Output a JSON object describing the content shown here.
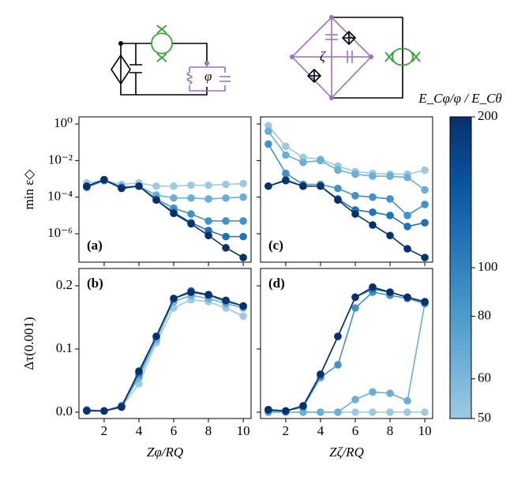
{
  "circuits": {
    "left_label": "φ",
    "right_label": "ζ"
  },
  "colorbar": {
    "label": "E_Cφ/φ / E_Cθ",
    "lim": [
      50,
      200
    ],
    "log": true,
    "ticks": [
      50,
      60,
      80,
      100,
      200
    ],
    "colors": [
      "#9ecae1",
      "#6baed6",
      "#4292c6",
      "#2171b5",
      "#08519c",
      "#08306b"
    ]
  },
  "chart_data": [
    {
      "type": "line",
      "panel_label": "(a)",
      "panel_label_corner": "bottom-left",
      "ylabel": "min ε◇",
      "log_y": true,
      "x": [
        1,
        2,
        3,
        4,
        5,
        6,
        7,
        8,
        9,
        10
      ],
      "xlim": [
        0.55,
        10.45
      ],
      "xticks": [
        2,
        4,
        6,
        8,
        10
      ],
      "show_xtick_labels": false,
      "ylim": [
        2.8e-08,
        2.45
      ],
      "yticks": [
        {
          "value": 1,
          "label": "10⁰"
        },
        {
          "value": 0.01,
          "label": "10⁻²"
        },
        {
          "value": 0.0001,
          "label": "10⁻⁴"
        },
        {
          "value": 1e-06,
          "label": "10⁻⁶"
        }
      ],
      "show_ytick_labels": true,
      "series": [
        {
          "color": "#9ecae1",
          "values": [
            0.0006,
            0.0008,
            0.0005,
            0.0006,
            0.0004,
            0.0004,
            0.00045,
            0.00045,
            0.0005,
            0.00055
          ]
        },
        {
          "color": "#6baed6",
          "values": [
            0.0004,
            0.0008,
            0.00035,
            0.0004,
            0.00013,
            9e-05,
            9e-05,
            8e-05,
            9e-05,
            0.0001
          ]
        },
        {
          "color": "#4292c6",
          "values": [
            0.00035,
            0.0008,
            0.00035,
            0.0004,
            8e-05,
            2.5e-05,
            1.2e-05,
            5e-06,
            5e-06,
            5e-06
          ]
        },
        {
          "color": "#2171b5",
          "values": [
            0.00035,
            0.0009,
            0.00035,
            0.0004,
            7e-05,
            1.5e-05,
            4e-06,
            1.5e-06,
            7e-07,
            7e-07
          ]
        },
        {
          "color": "#08306b",
          "values": [
            0.0004,
            0.0009,
            0.0003,
            0.0004,
            7e-05,
            1.3e-05,
            3.5e-06,
            8e-07,
            1.7e-07,
            5e-08
          ]
        }
      ]
    },
    {
      "type": "line",
      "panel_label": "(b)",
      "panel_label_corner": "top-left",
      "ylabel": "Δτ(0.001)",
      "xlabel": "Zφ/RQ",
      "log_y": false,
      "x": [
        1,
        2,
        3,
        4,
        5,
        6,
        7,
        8,
        9,
        10
      ],
      "xlim": [
        0.55,
        10.45
      ],
      "xticks": [
        2,
        4,
        6,
        8,
        10
      ],
      "show_xtick_labels": true,
      "ylim": [
        -0.01,
        0.2275
      ],
      "yticks": [
        {
          "value": 0,
          "label": "0.0"
        },
        0.1,
        0.2
      ],
      "show_ytick_labels": true,
      "series": [
        {
          "color": "#9ecae1",
          "values": [
            0.004,
            0.002,
            0.008,
            0.045,
            0.11,
            0.165,
            0.178,
            0.175,
            0.165,
            0.152
          ]
        },
        {
          "color": "#6baed6",
          "values": [
            0.003,
            0.002,
            0.009,
            0.055,
            0.115,
            0.175,
            0.185,
            0.18,
            0.172,
            0.165
          ]
        },
        {
          "color": "#4292c6",
          "values": [
            0.003,
            0.002,
            0.01,
            0.06,
            0.12,
            0.18,
            0.19,
            0.185,
            0.175,
            0.168
          ]
        },
        {
          "color": "#2171b5",
          "values": [
            0.003,
            0.002,
            0.01,
            0.063,
            0.12,
            0.18,
            0.192,
            0.186,
            0.177,
            0.168
          ]
        },
        {
          "color": "#08306b",
          "values": [
            0.002,
            0.002,
            0.008,
            0.065,
            0.12,
            0.18,
            0.19,
            0.186,
            0.177,
            0.168
          ]
        }
      ]
    },
    {
      "type": "line",
      "panel_label": "(c)",
      "panel_label_corner": "bottom-left",
      "log_y": true,
      "x": [
        1,
        2,
        3,
        4,
        5,
        6,
        7,
        8,
        9,
        10
      ],
      "xlim": [
        0.55,
        10.45
      ],
      "xticks": [
        2,
        4,
        6,
        8,
        10
      ],
      "show_xtick_labels": false,
      "ylim": [
        2.8e-08,
        2.45
      ],
      "yticks": [
        1,
        0.01,
        0.0001,
        1e-06
      ],
      "show_ytick_labels": false,
      "series": [
        {
          "color": "#9ecae1",
          "values": [
            0.8,
            0.06,
            0.015,
            0.012,
            0.005,
            0.0025,
            0.002,
            0.0018,
            0.0018,
            0.003
          ]
        },
        {
          "color": "#6baed6",
          "values": [
            0.4,
            0.02,
            0.008,
            0.01,
            0.003,
            0.0018,
            0.0014,
            0.0014,
            0.0012,
            0.00025
          ]
        },
        {
          "color": "#4292c6",
          "values": [
            0.08,
            0.002,
            0.0005,
            0.0005,
            0.0003,
            0.00012,
            0.0001,
            8e-05,
            1e-05,
            4e-05
          ]
        },
        {
          "color": "#2171b5",
          "values": [
            0.0004,
            0.0009,
            0.0004,
            0.0004,
            8e-05,
            2e-05,
            1.5e-05,
            1e-05,
            2.5e-06,
            4e-06
          ]
        },
        {
          "color": "#08306b",
          "values": [
            0.0004,
            0.0008,
            0.0004,
            0.0004,
            7e-05,
            1.2e-05,
            3e-06,
            8e-07,
            1.5e-07,
            5e-08
          ]
        }
      ]
    },
    {
      "type": "line",
      "panel_label": "(d)",
      "panel_label_corner": "top-left",
      "xlabel": "Zζ/RQ",
      "log_y": false,
      "x": [
        1,
        2,
        3,
        4,
        5,
        6,
        7,
        8,
        9,
        10
      ],
      "xlim": [
        0.55,
        10.45
      ],
      "xticks": [
        2,
        4,
        6,
        8,
        10
      ],
      "show_xtick_labels": true,
      "ylim": [
        -0.01,
        0.2275
      ],
      "yticks": [
        0,
        0.1,
        0.2
      ],
      "show_ytick_labels": false,
      "series": [
        {
          "color": "#9ecae1",
          "values": [
            0,
            0,
            0,
            0,
            0,
            0,
            0,
            0,
            0,
            0
          ]
        },
        {
          "color": "#6baed6",
          "values": [
            0,
            0,
            0,
            0,
            0,
            0.02,
            0.032,
            0.03,
            0.018,
            0.172
          ]
        },
        {
          "color": "#4292c6",
          "values": [
            0.002,
            0.002,
            0.008,
            0.055,
            0.075,
            0.165,
            0.19,
            0.185,
            0.18,
            0.172
          ]
        },
        {
          "color": "#2171b5",
          "values": [
            0.004,
            0.002,
            0.01,
            0.06,
            0.12,
            0.182,
            0.195,
            0.19,
            0.182,
            0.174
          ]
        },
        {
          "color": "#08306b",
          "values": [
            0.004,
            0.002,
            0.01,
            0.06,
            0.12,
            0.182,
            0.198,
            0.19,
            0.182,
            0.175
          ]
        }
      ]
    }
  ]
}
